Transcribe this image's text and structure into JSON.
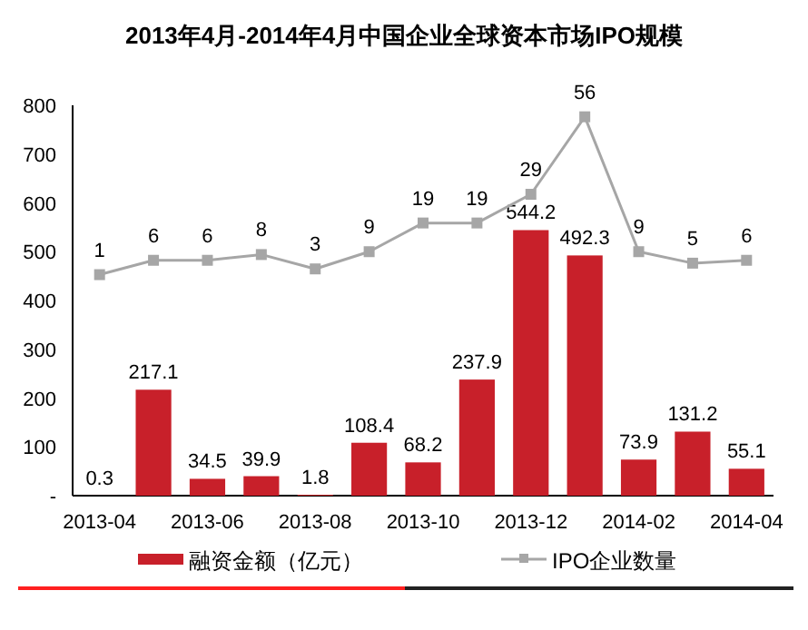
{
  "chart_data": {
    "type": "bar",
    "title": "2013年4月-2014年4月中国企业全球资本市场IPO规模",
    "categories": [
      "2013-04",
      null,
      "2013-06",
      null,
      "2013-08",
      null,
      "2013-10",
      null,
      "2013-12",
      null,
      "2014-02",
      null,
      "2014-04"
    ],
    "series": [
      {
        "name": "融资金额（亿元）",
        "color": "#c8202a",
        "values": [
          0.3,
          217.1,
          34.5,
          39.9,
          1.8,
          108.4,
          68.2,
          237.9,
          544.2,
          492.3,
          73.9,
          131.2,
          55.1
        ]
      },
      {
        "name": "IPO企业数量",
        "type": "line",
        "axis": "y2",
        "color": "#a6a6a6",
        "marker": "square",
        "values": [
          1,
          6,
          6,
          8,
          3,
          9,
          19,
          19,
          29,
          56,
          9,
          5,
          6
        ]
      }
    ],
    "ylim": [
      0,
      800
    ],
    "yticks": [
      {
        "value": 0,
        "label": "-"
      },
      100,
      200,
      300,
      400,
      500,
      600,
      700,
      800
    ],
    "y2lim": [
      -76,
      60
    ],
    "tick_labels": "xy",
    "data_labels": true,
    "grid": false,
    "legend": "bottom"
  }
}
